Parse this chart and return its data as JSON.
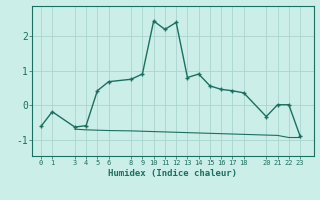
{
  "xlabel": "Humidex (Indice chaleur)",
  "bg_color": "#cceee8",
  "line_color": "#1a7060",
  "grid_color": "#aad4ce",
  "line1_x": [
    0,
    1,
    3,
    4,
    5,
    6,
    8,
    9,
    10,
    11,
    12,
    13,
    14,
    15,
    16,
    17,
    18,
    20,
    21,
    22,
    23
  ],
  "line1_y": [
    -0.6,
    -0.18,
    -0.62,
    -0.58,
    0.42,
    0.68,
    0.75,
    0.9,
    2.42,
    2.18,
    2.38,
    0.8,
    0.9,
    0.56,
    0.46,
    0.42,
    0.36,
    -0.32,
    0.02,
    0.02,
    -0.88
  ],
  "line2_x": [
    3,
    4,
    5,
    6,
    8,
    9,
    10,
    11,
    12,
    13,
    14,
    15,
    16,
    17,
    18,
    20,
    21,
    22,
    23
  ],
  "line2_y": [
    -0.68,
    -0.7,
    -0.71,
    -0.72,
    -0.73,
    -0.74,
    -0.75,
    -0.76,
    -0.77,
    -0.78,
    -0.79,
    -0.8,
    -0.81,
    -0.82,
    -0.83,
    -0.85,
    -0.86,
    -0.92,
    -0.92
  ],
  "xticks": [
    0,
    1,
    3,
    4,
    5,
    6,
    8,
    9,
    10,
    11,
    12,
    13,
    14,
    15,
    16,
    17,
    18,
    20,
    21,
    22,
    23
  ],
  "yticks": [
    -1,
    0,
    1,
    2
  ],
  "xlim": [
    -0.8,
    24.2
  ],
  "ylim": [
    -1.45,
    2.85
  ]
}
